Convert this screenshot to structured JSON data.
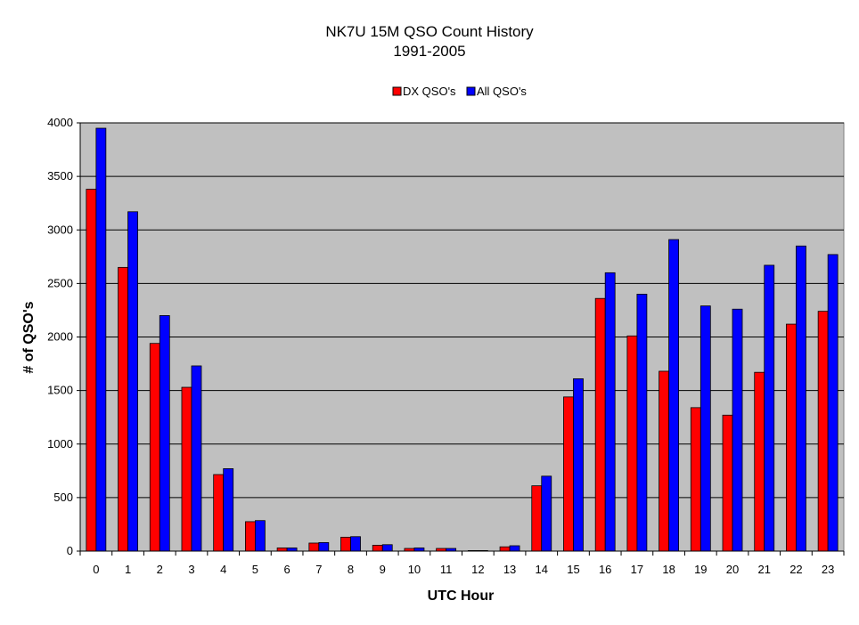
{
  "chart_data": {
    "type": "bar",
    "title": "NK7U 15M QSO Count History",
    "subtitle": "1991-2005",
    "xlabel": "UTC Hour",
    "ylabel": "# of QSO's",
    "ylim": [
      0,
      4000
    ],
    "yticks": [
      0,
      500,
      1000,
      1500,
      2000,
      2500,
      3000,
      3500,
      4000
    ],
    "grid": true,
    "legend_position": "top-center",
    "plot_background": "#C0C0C0",
    "categories": [
      "0",
      "1",
      "2",
      "3",
      "4",
      "5",
      "6",
      "7",
      "8",
      "9",
      "10",
      "11",
      "12",
      "13",
      "14",
      "15",
      "16",
      "17",
      "18",
      "19",
      "20",
      "21",
      "22",
      "23"
    ],
    "series": [
      {
        "name": "DX QSO's",
        "color": "#FF0000",
        "values": [
          3380,
          2650,
          1940,
          1530,
          715,
          275,
          30,
          75,
          130,
          55,
          25,
          25,
          5,
          40,
          610,
          1440,
          2360,
          2010,
          1680,
          1340,
          1270,
          1670,
          2120,
          2240
        ]
      },
      {
        "name": "All QSO's",
        "color": "#0000FF",
        "values": [
          3950,
          3170,
          2200,
          1730,
          770,
          285,
          30,
          80,
          135,
          60,
          30,
          25,
          5,
          50,
          700,
          1610,
          2600,
          2400,
          2910,
          2290,
          2260,
          2670,
          2850,
          2770
        ]
      }
    ]
  }
}
